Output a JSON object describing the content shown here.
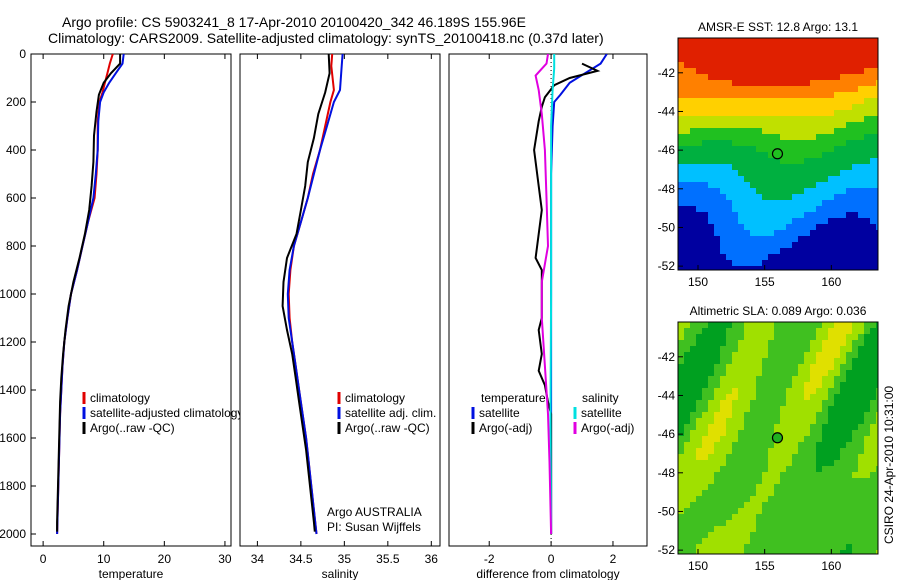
{
  "header": {
    "title_line1": "Argo profile: CS 5903241_8 17-Apr-2010 20100420_342 46.189S 155.96E",
    "title_line2": "Climatology: CARS2009. Satellite-adjusted climatology: synTS_20100418.nc (0.37d later)"
  },
  "footer": {
    "credit": "CSIRO 24-Apr-2010 10:31:00"
  },
  "colors": {
    "climatology": "#e00000",
    "satellite": "#0010e0",
    "argo": "#000000",
    "sat_salinity": "#00e0e0",
    "argo_salinity": "#e000e0",
    "marker": "#000000"
  },
  "chart_data": [
    {
      "id": "temperature",
      "type": "line",
      "xlabel": "temperature",
      "xlim": [
        -2,
        31
      ],
      "xticks": [
        0,
        10,
        20,
        30
      ],
      "ylim": [
        2050,
        0
      ],
      "yticks": [
        0,
        200,
        400,
        600,
        800,
        1000,
        1200,
        1400,
        1600,
        1800,
        2000
      ],
      "legend": [
        "climatology",
        "satellite-adjusted climatology",
        "Argo(..raw -QC)"
      ],
      "series": [
        {
          "name": "climatology",
          "color": "climatology",
          "points": [
            [
              11.5,
              0
            ],
            [
              11.0,
              40
            ],
            [
              10.6,
              80
            ],
            [
              10.2,
              120
            ],
            [
              9.8,
              160
            ],
            [
              9.3,
              200
            ],
            [
              9.0,
              280
            ],
            [
              9.0,
              400
            ],
            [
              8.8,
              500
            ],
            [
              8.5,
              600
            ],
            [
              7.4,
              700
            ],
            [
              6.5,
              800
            ],
            [
              5.6,
              900
            ],
            [
              4.6,
              1000
            ],
            [
              4.0,
              1100
            ],
            [
              3.5,
              1200
            ],
            [
              3.2,
              1300
            ],
            [
              3.0,
              1400
            ],
            [
              2.8,
              1500
            ],
            [
              2.7,
              1600
            ],
            [
              2.6,
              1700
            ],
            [
              2.5,
              1800
            ],
            [
              2.4,
              1900
            ],
            [
              2.3,
              2000
            ]
          ]
        },
        {
          "name": "satellite-adjusted climatology",
          "color": "satellite",
          "points": [
            [
              13.3,
              0
            ],
            [
              13.1,
              40
            ],
            [
              12.0,
              80
            ],
            [
              10.9,
              120
            ],
            [
              10.0,
              160
            ],
            [
              9.4,
              200
            ],
            [
              9.1,
              280
            ],
            [
              9.0,
              400
            ],
            [
              8.7,
              500
            ],
            [
              8.3,
              600
            ],
            [
              7.4,
              700
            ],
            [
              6.5,
              800
            ],
            [
              5.6,
              900
            ],
            [
              4.6,
              1000
            ],
            [
              4.0,
              1100
            ],
            [
              3.5,
              1200
            ],
            [
              3.2,
              1300
            ],
            [
              3.0,
              1400
            ],
            [
              2.8,
              1500
            ],
            [
              2.7,
              1600
            ],
            [
              2.6,
              1700
            ],
            [
              2.5,
              1800
            ],
            [
              2.4,
              1900
            ],
            [
              2.3,
              2000
            ]
          ]
        },
        {
          "name": "Argo(..raw -QC)",
          "color": "argo",
          "points": [
            [
              12.7,
              0
            ],
            [
              12.7,
              40
            ],
            [
              11.2,
              80
            ],
            [
              10.0,
              120
            ],
            [
              9.2,
              170
            ],
            [
              8.8,
              240
            ],
            [
              8.4,
              340
            ],
            [
              8.3,
              450
            ],
            [
              8.0,
              550
            ],
            [
              7.6,
              650
            ],
            [
              6.9,
              750
            ],
            [
              6.0,
              850
            ],
            [
              5.0,
              950
            ],
            [
              4.2,
              1050
            ],
            [
              3.7,
              1150
            ],
            [
              3.3,
              1250
            ],
            [
              3.0,
              1350
            ],
            [
              2.8,
              1450
            ],
            [
              2.7,
              1550
            ],
            [
              2.6,
              1650
            ],
            [
              2.5,
              1750
            ],
            [
              2.4,
              1850
            ],
            [
              2.3,
              1950
            ],
            [
              2.3,
              1990
            ]
          ]
        }
      ]
    },
    {
      "id": "salinity",
      "type": "line",
      "xlabel": "salinity",
      "xlim": [
        33.8,
        36.1
      ],
      "xticks": [
        34,
        34.5,
        35,
        35.5,
        36
      ],
      "ylim": [
        2050,
        0
      ],
      "legend": [
        "climatology",
        "satellite adj. clim.",
        "Argo(..raw -QC)"
      ],
      "annotation": [
        "Argo AUSTRALIA",
        "PI: Susan Wijffels"
      ],
      "series": [
        {
          "name": "climatology",
          "color": "climatology",
          "points": [
            [
              34.86,
              0
            ],
            [
              34.85,
              50
            ],
            [
              34.88,
              150
            ],
            [
              34.84,
              200
            ],
            [
              34.78,
              300
            ],
            [
              34.72,
              400
            ],
            [
              34.64,
              500
            ],
            [
              34.58,
              600
            ],
            [
              34.5,
              700
            ],
            [
              34.42,
              800
            ],
            [
              34.38,
              900
            ],
            [
              34.36,
              1000
            ],
            [
              34.37,
              1100
            ],
            [
              34.4,
              1200
            ],
            [
              34.44,
              1300
            ],
            [
              34.48,
              1400
            ],
            [
              34.52,
              1500
            ],
            [
              34.56,
              1600
            ],
            [
              34.59,
              1700
            ],
            [
              34.62,
              1800
            ],
            [
              34.65,
              1900
            ],
            [
              34.68,
              2000
            ]
          ]
        },
        {
          "name": "satellite adj. clim.",
          "color": "satellite",
          "points": [
            [
              34.98,
              0
            ],
            [
              34.97,
              50
            ],
            [
              34.95,
              150
            ],
            [
              34.88,
              200
            ],
            [
              34.8,
              300
            ],
            [
              34.72,
              400
            ],
            [
              34.65,
              500
            ],
            [
              34.58,
              600
            ],
            [
              34.5,
              700
            ],
            [
              34.42,
              800
            ],
            [
              34.37,
              900
            ],
            [
              34.35,
              1000
            ],
            [
              34.36,
              1100
            ],
            [
              34.4,
              1200
            ],
            [
              34.44,
              1300
            ],
            [
              34.48,
              1400
            ],
            [
              34.52,
              1500
            ],
            [
              34.56,
              1600
            ],
            [
              34.59,
              1700
            ],
            [
              34.62,
              1800
            ],
            [
              34.65,
              1900
            ],
            [
              34.68,
              2000
            ]
          ]
        },
        {
          "name": "Argo(..raw -QC)",
          "color": "argo",
          "points": [
            [
              34.82,
              0
            ],
            [
              34.83,
              80
            ],
            [
              34.78,
              160
            ],
            [
              34.7,
              250
            ],
            [
              34.65,
              350
            ],
            [
              34.58,
              450
            ],
            [
              34.55,
              550
            ],
            [
              34.5,
              650
            ],
            [
              34.45,
              750
            ],
            [
              34.34,
              850
            ],
            [
              34.3,
              950
            ],
            [
              34.29,
              1050
            ],
            [
              34.34,
              1150
            ],
            [
              34.4,
              1250
            ],
            [
              34.44,
              1350
            ],
            [
              34.48,
              1450
            ],
            [
              34.52,
              1550
            ],
            [
              34.56,
              1650
            ],
            [
              34.59,
              1750
            ],
            [
              34.62,
              1850
            ],
            [
              34.65,
              1950
            ],
            [
              34.66,
              1990
            ]
          ]
        }
      ]
    },
    {
      "id": "difference",
      "type": "line",
      "xlabel": "difference from climatology",
      "xlim": [
        -3.3,
        3.1
      ],
      "xticks": [
        -2,
        0,
        2
      ],
      "ylim": [
        2050,
        0
      ],
      "legend_left_title": "temperature",
      "legend_right_title": "salinity",
      "legend": [
        "satellite",
        "Argo(-adj)",
        "satellite",
        "Argo(-adj)"
      ],
      "series": [
        {
          "name": "satellite",
          "color": "satellite",
          "points": [
            [
              1.8,
              0
            ],
            [
              1.6,
              40
            ],
            [
              1.1,
              80
            ],
            [
              0.6,
              120
            ],
            [
              0.3,
              170
            ],
            [
              0.1,
              200
            ],
            [
              0.05,
              300
            ],
            [
              0.0,
              500
            ],
            [
              0.0,
              1000
            ],
            [
              0.0,
              2000
            ]
          ]
        },
        {
          "name": "Argo(-adj)",
          "color": "argo",
          "points": [
            [
              1.0,
              40
            ],
            [
              1.5,
              70
            ],
            [
              0.6,
              100
            ],
            [
              0.1,
              130
            ],
            [
              -0.2,
              180
            ],
            [
              -0.3,
              220
            ],
            [
              -0.4,
              280
            ],
            [
              -0.55,
              400
            ],
            [
              -0.4,
              550
            ],
            [
              -0.3,
              650
            ],
            [
              -0.4,
              750
            ],
            [
              -0.5,
              850
            ],
            [
              -0.3,
              900
            ],
            [
              -0.3,
              1100
            ],
            [
              -0.4,
              1150
            ],
            [
              -0.3,
              1250
            ],
            [
              -0.4,
              1320
            ],
            [
              -0.2,
              1380
            ],
            [
              -0.1,
              1450
            ],
            [
              0.0,
              1500
            ],
            [
              0.0,
              2000
            ]
          ]
        },
        {
          "name": "satellite",
          "color": "sat_salinity",
          "points": [
            [
              0.1,
              0
            ],
            [
              0.1,
              60
            ],
            [
              0.05,
              150
            ],
            [
              0.0,
              300
            ],
            [
              0.0,
              1000
            ],
            [
              -0.02,
              1500
            ],
            [
              0.0,
              2000
            ]
          ]
        },
        {
          "name": "Argo(-adj)",
          "color": "argo_salinity",
          "points": [
            [
              -0.1,
              0
            ],
            [
              -0.15,
              40
            ],
            [
              -0.5,
              90
            ],
            [
              -0.4,
              150
            ],
            [
              -0.3,
              250
            ],
            [
              -0.2,
              400
            ],
            [
              -0.15,
              600
            ],
            [
              -0.1,
              800
            ],
            [
              -0.3,
              950
            ],
            [
              -0.3,
              1100
            ],
            [
              -0.2,
              1300
            ],
            [
              -0.1,
              1500
            ],
            [
              -0.05,
              1700
            ],
            [
              0.0,
              2000
            ]
          ]
        }
      ]
    },
    {
      "id": "sst-map",
      "type": "heatmap",
      "title": "AMSR-E SST: 12.8 Argo: 13.1",
      "xlim": [
        148.5,
        163.5
      ],
      "ylim": [
        -52.2,
        -40.2
      ],
      "xticks": [
        150,
        155,
        160
      ],
      "yticks": [
        -42,
        -44,
        -46,
        -48,
        -50,
        -52
      ],
      "marker": {
        "lon": 155.96,
        "lat": -46.189,
        "fill": "none"
      }
    },
    {
      "id": "sla-map",
      "type": "heatmap",
      "title": "Altimetric SLA: 0.089 Argo: 0.036",
      "xlim": [
        148.5,
        163.5
      ],
      "ylim": [
        -52.2,
        -40.2
      ],
      "xticks": [
        150,
        155,
        160
      ],
      "yticks": [
        -42,
        -44,
        -46,
        -48,
        -50,
        -52
      ],
      "marker": {
        "lon": 155.96,
        "lat": -46.189,
        "fill": "green"
      }
    }
  ]
}
